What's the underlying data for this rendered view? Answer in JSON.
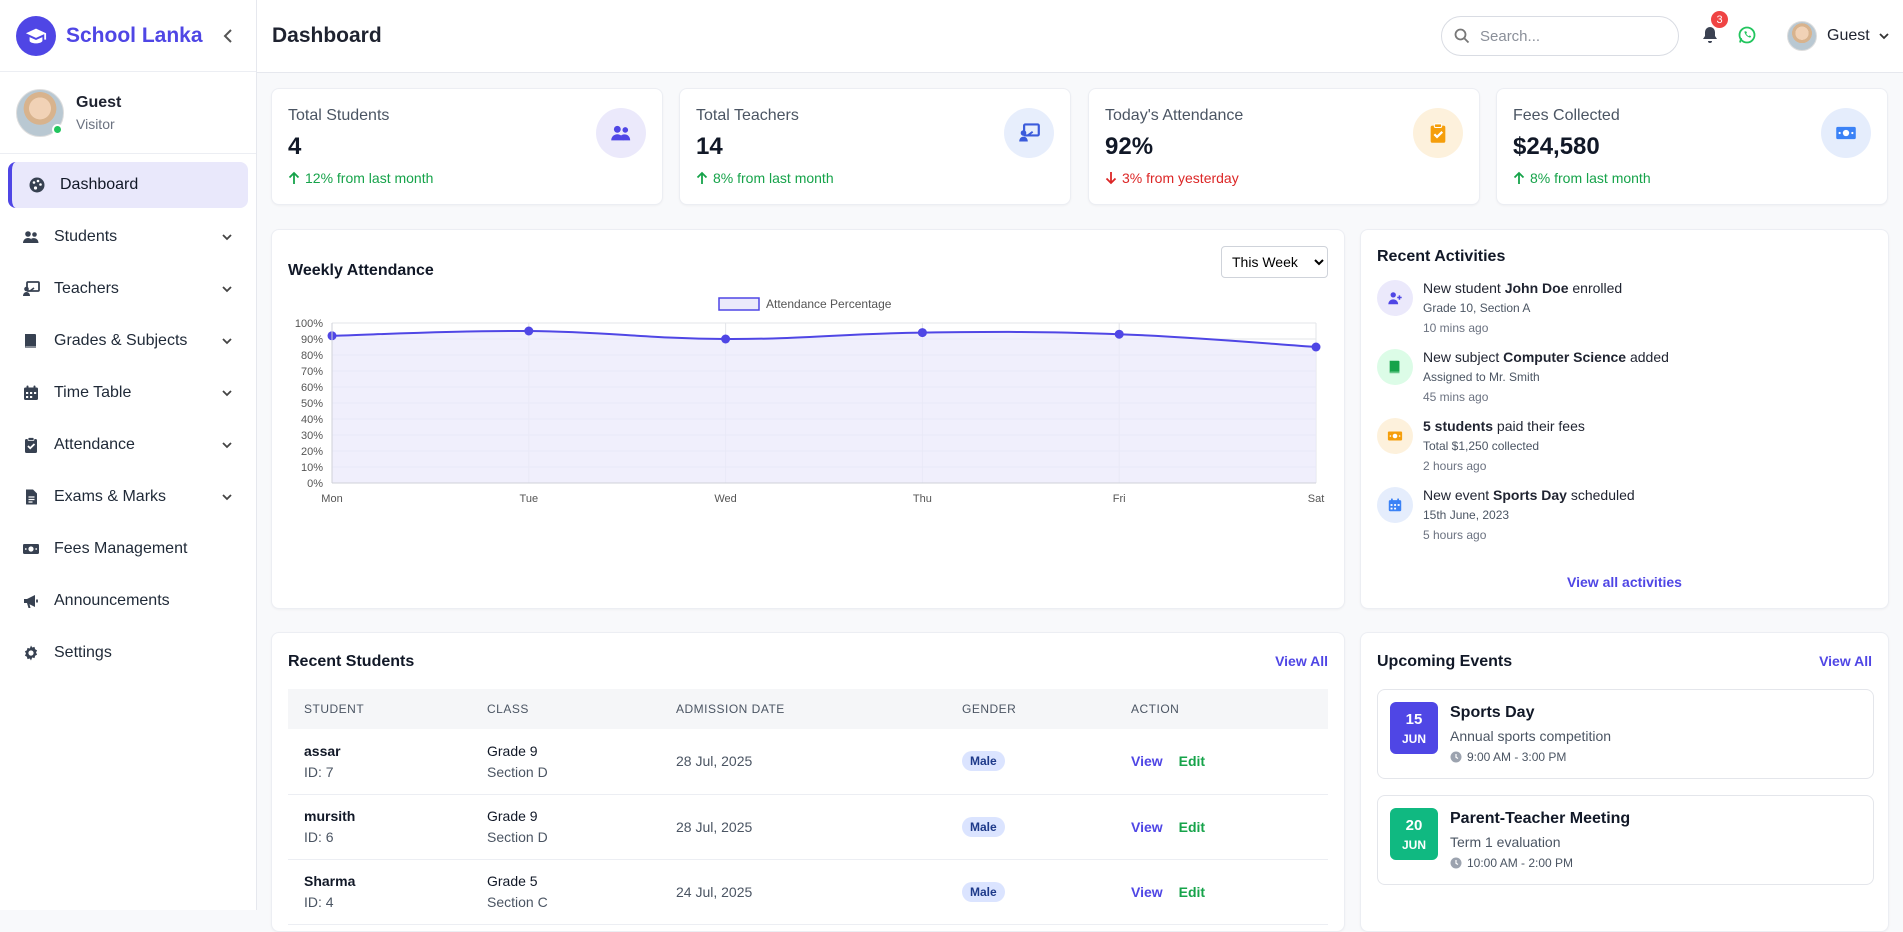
{
  "brand": {
    "name": "School Lanka"
  },
  "profile": {
    "name": "Guest",
    "role": "Visitor"
  },
  "nav": [
    {
      "label": "Dashboard",
      "icon": "palette-icon",
      "active": true,
      "expandable": false
    },
    {
      "label": "Students",
      "icon": "users-icon",
      "expandable": true
    },
    {
      "label": "Teachers",
      "icon": "chalkboard-teacher-icon",
      "expandable": true
    },
    {
      "label": "Grades & Subjects",
      "icon": "book-icon",
      "expandable": true
    },
    {
      "label": "Time Table",
      "icon": "calendar-icon",
      "expandable": true
    },
    {
      "label": "Attendance",
      "icon": "clipboard-check-icon",
      "expandable": true
    },
    {
      "label": "Exams & Marks",
      "icon": "file-icon",
      "expandable": true
    },
    {
      "label": "Fees Management",
      "icon": "money-icon",
      "expandable": false
    },
    {
      "label": "Announcements",
      "icon": "megaphone-icon",
      "expandable": false
    },
    {
      "label": "Settings",
      "icon": "gear-icon",
      "expandable": false
    }
  ],
  "header": {
    "title": "Dashboard",
    "search_placeholder": "Search...",
    "notification_count": "3",
    "user_name": "Guest"
  },
  "stats": [
    {
      "label": "Total Students",
      "value": "4",
      "trend": "12% from last month",
      "direction": "up",
      "icon": "users-icon",
      "icon_bg": "#ebe9fb",
      "icon_color": "#4f46e5"
    },
    {
      "label": "Total Teachers",
      "value": "14",
      "trend": "8% from last month",
      "direction": "up",
      "icon": "chalkboard-teacher-icon",
      "icon_bg": "#e7eefc",
      "icon_color": "#3b5bdb"
    },
    {
      "label": "Today's Attendance",
      "value": "92%",
      "trend": "3% from yesterday",
      "direction": "down",
      "icon": "clipboard-check-icon",
      "icon_bg": "#fdf1dc",
      "icon_color": "#f59e0b"
    },
    {
      "label": "Fees Collected",
      "value": "$24,580",
      "trend": "8% from last month",
      "direction": "up",
      "icon": "money-icon",
      "icon_bg": "#e5edfc",
      "icon_color": "#3b82f6"
    }
  ],
  "attendance_chart": {
    "title": "Weekly Attendance",
    "period": "This Week",
    "period_options": [
      "This Week"
    ]
  },
  "chart_data": {
    "type": "area",
    "categories": [
      "Mon",
      "Tue",
      "Wed",
      "Thu",
      "Fri",
      "Sat"
    ],
    "series": [
      {
        "name": "Attendance Percentage",
        "values": [
          92,
          95,
          90,
          94,
          93,
          85
        ]
      }
    ],
    "ylim": [
      0,
      100
    ],
    "yticks": [
      "0%",
      "10%",
      "20%",
      "30%",
      "40%",
      "50%",
      "60%",
      "70%",
      "80%",
      "90%",
      "100%"
    ],
    "legend": "top-center",
    "grid": true,
    "line_color": "#4f46e5",
    "fill_color": "#ebe9fb"
  },
  "activities": {
    "title": "Recent Activities",
    "items": [
      {
        "pre": "New student ",
        "bold": "John Doe",
        "post": " enrolled",
        "sub": "Grade 10, Section A",
        "time": "10 mins ago",
        "icon": "user-plus-icon",
        "bg": "#ebe9fb",
        "color": "#4f46e5"
      },
      {
        "pre": "New subject ",
        "bold": "Computer Science",
        "post": " added",
        "sub": "Assigned to Mr. Smith",
        "time": "45 mins ago",
        "icon": "book-icon",
        "bg": "#dcfce7",
        "color": "#16a34a"
      },
      {
        "pre": "",
        "bold": "5 students",
        "post": " paid their fees",
        "sub": "Total $1,250 collected",
        "time": "2 hours ago",
        "icon": "money-icon",
        "bg": "#fdf1dc",
        "color": "#f59e0b"
      },
      {
        "pre": "New event ",
        "bold": "Sports Day",
        "post": " scheduled",
        "sub": "15th June, 2023",
        "time": "5 hours ago",
        "icon": "calendar-icon",
        "bg": "#e5edfc",
        "color": "#3b82f6"
      }
    ],
    "view_all": "View all activities"
  },
  "students": {
    "title": "Recent Students",
    "view_all": "View All",
    "columns": [
      "STUDENT",
      "CLASS",
      "ADMISSION DATE",
      "GENDER",
      "ACTION"
    ],
    "rows": [
      {
        "name": "assar",
        "id": "ID: 7",
        "grade": "Grade 9",
        "section": "Section D",
        "date": "28 Jul, 2025",
        "gender": "Male"
      },
      {
        "name": "mursith",
        "id": "ID: 6",
        "grade": "Grade 9",
        "section": "Section D",
        "date": "28 Jul, 2025",
        "gender": "Male"
      },
      {
        "name": "Sharma",
        "id": "ID: 4",
        "grade": "Grade 5",
        "section": "Section C",
        "date": "24 Jul, 2025",
        "gender": "Male"
      }
    ],
    "view_label": "View",
    "edit_label": "Edit"
  },
  "events": {
    "title": "Upcoming Events",
    "view_all": "View All",
    "items": [
      {
        "day": "15",
        "month": "JUN",
        "title": "Sports Day",
        "desc": "Annual sports competition",
        "time": "9:00 AM - 3:00 PM",
        "color": "#4f46e5"
      },
      {
        "day": "20",
        "month": "JUN",
        "title": "Parent-Teacher Meeting",
        "desc": "Term 1 evaluation",
        "time": "10:00 AM - 2:00 PM",
        "color": "#10b981"
      }
    ]
  }
}
